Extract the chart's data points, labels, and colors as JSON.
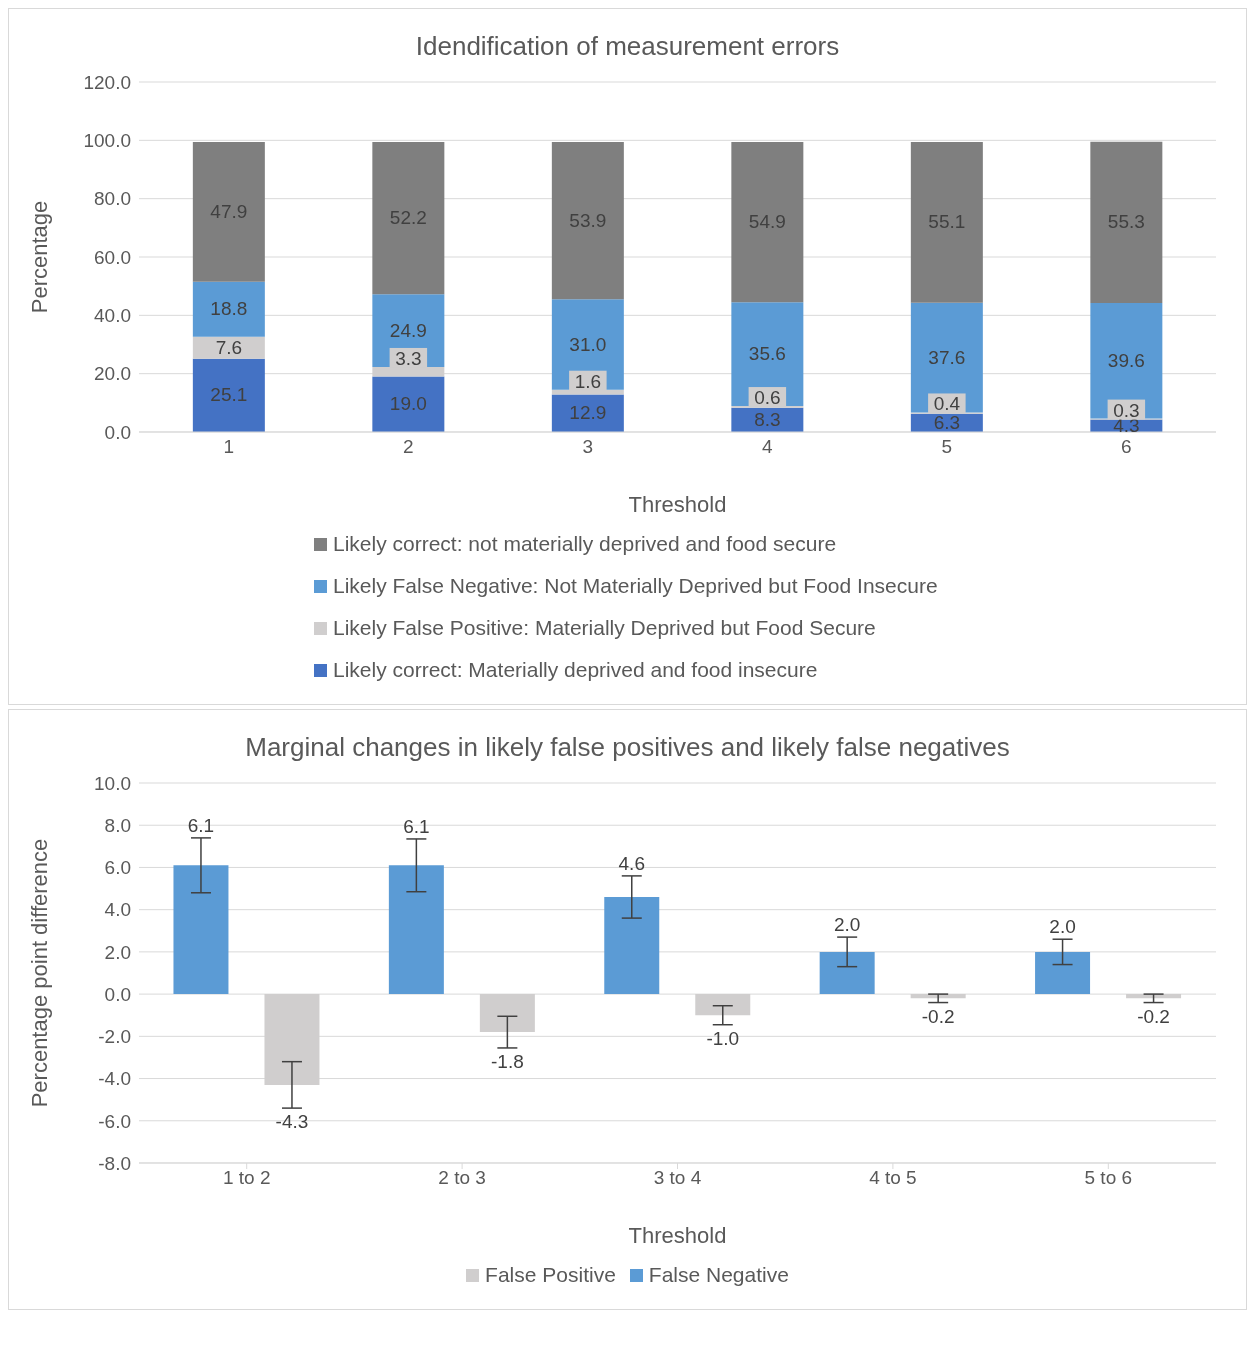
{
  "chart_data": [
    {
      "type": "bar",
      "title": "Idendification of measurement errors",
      "xlabel": "Threshold",
      "ylabel": "Percentage",
      "categories": [
        "1",
        "2",
        "3",
        "4",
        "5",
        "6"
      ],
      "stacked": true,
      "series": [
        {
          "name": "Likely correct: Materially deprived and food insecure",
          "color": "#4472c4",
          "values": [
            25.1,
            19.0,
            12.9,
            8.3,
            6.3,
            4.3
          ],
          "value_labels": [
            "25.1",
            "19.0",
            "12.9",
            "8.3",
            "6.3",
            "4.3"
          ]
        },
        {
          "name": "Likely False Positive: Materially Deprived but Food Secure",
          "color": "#d0cece",
          "values": [
            7.6,
            3.3,
            1.6,
            0.6,
            0.4,
            0.3
          ],
          "value_labels": [
            "7.6",
            "3.3",
            "1.6",
            "0.6",
            "0.4",
            "0.3"
          ]
        },
        {
          "name": "Likely False Negative: Not Materially Deprived but Food Insecure",
          "color": "#5b9bd5",
          "values": [
            18.8,
            24.9,
            31.0,
            35.6,
            37.6,
            39.6
          ],
          "value_labels": [
            "18.8",
            "24.9",
            "31.0",
            "35.6",
            "37.6",
            "39.6"
          ]
        },
        {
          "name": "Likely correct: not materially deprived and food secure",
          "color": "#7f7f7f",
          "values": [
            47.9,
            52.2,
            53.9,
            54.9,
            55.1,
            55.3
          ],
          "value_labels": [
            "47.9",
            "52.2",
            "53.9",
            "54.9",
            "55.1",
            "55.3"
          ]
        }
      ],
      "ylim": [
        0,
        120
      ],
      "yticks": [
        {
          "value": 0,
          "label": "0.0"
        },
        {
          "value": 20,
          "label": "20.0"
        },
        {
          "value": 40,
          "label": "40.0"
        },
        {
          "value": 60,
          "label": "60.0"
        },
        {
          "value": 80,
          "label": "80.0"
        },
        {
          "value": 100,
          "label": "100.0"
        },
        {
          "value": 120,
          "label": "120.0"
        }
      ],
      "grid": "y",
      "legend": "bottom"
    },
    {
      "type": "bar",
      "title": "Marginal changes in likely false positives and likely false negatives",
      "xlabel": "Threshold",
      "ylabel": "Percentage point difference",
      "categories": [
        "1 to 2",
        "2 to 3",
        "3 to 4",
        "4 to 5",
        "5 to 6"
      ],
      "series": [
        {
          "name": "False Negative",
          "color": "#5b9bd5",
          "values": [
            6.1,
            6.1,
            4.6,
            2.0,
            2.0
          ],
          "value_labels": [
            "6.1",
            "6.1",
            "4.6",
            "2.0",
            "2.0"
          ],
          "errors": [
            1.3,
            1.25,
            1.0,
            0.7,
            0.6
          ]
        },
        {
          "name": "False Positive",
          "color": "#d0cece",
          "values": [
            -4.3,
            -1.8,
            -1.0,
            -0.2,
            -0.2
          ],
          "value_labels": [
            "-4.3",
            "-1.8",
            "-1.0",
            "-0.2",
            "-0.2"
          ],
          "errors": [
            1.1,
            0.75,
            0.45,
            0.2,
            0.2
          ]
        }
      ],
      "ylim": [
        -8,
        10
      ],
      "yticks": [
        {
          "value": -8,
          "label": "-8.0"
        },
        {
          "value": -6,
          "label": "-6.0"
        },
        {
          "value": -4,
          "label": "-4.0"
        },
        {
          "value": -2,
          "label": "-2.0"
        },
        {
          "value": 0,
          "label": "0.0"
        },
        {
          "value": 2,
          "label": "2.0"
        },
        {
          "value": 4,
          "label": "4.0"
        },
        {
          "value": 6,
          "label": "6.0"
        },
        {
          "value": 8,
          "label": "8.0"
        },
        {
          "value": 10,
          "label": "10.0"
        }
      ],
      "grid": "y",
      "legend": "bottom"
    }
  ]
}
